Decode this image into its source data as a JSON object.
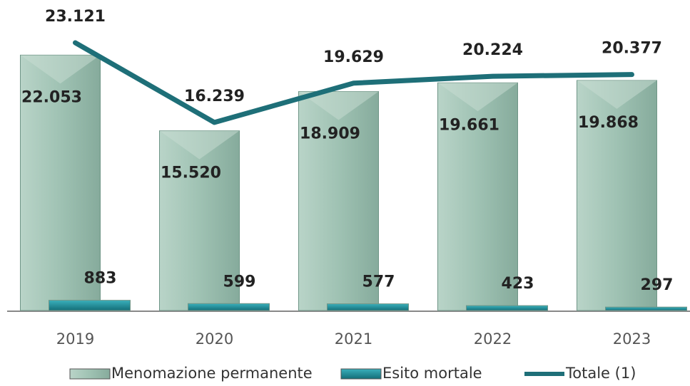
{
  "chart_data": {
    "type": "bar",
    "categories": [
      "2019",
      "2020",
      "2021",
      "2022",
      "2023"
    ],
    "series": [
      {
        "name": "Menomazione permanente",
        "color": "#9fc2b3",
        "type": "bar",
        "values": [
          22053,
          15520,
          18909,
          19661,
          19868
        ],
        "value_labels": [
          "22.053",
          "15.520",
          "18.909",
          "19.661",
          "19.868"
        ]
      },
      {
        "name": "Esito mortale",
        "color": "#1b8d99",
        "type": "bar",
        "values": [
          883,
          599,
          577,
          423,
          297
        ]
      },
      {
        "name": "Totale (1)",
        "color": "#1e6f78",
        "type": "line",
        "values": [
          23121,
          16239,
          19629,
          20224,
          20377
        ],
        "value_labels": [
          "23.121",
          "16.239",
          "19.629",
          "20.224",
          "20.377"
        ]
      }
    ],
    "legend": "bottom"
  }
}
